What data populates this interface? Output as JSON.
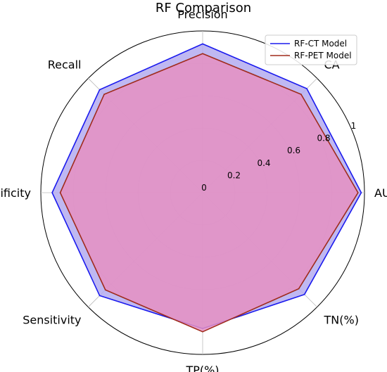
{
  "chart_data": {
    "type": "radar",
    "title": "RF Comparison",
    "categories": [
      "Precision",
      "CA",
      "AUC",
      "TN(%)",
      "TP(%)",
      "Sensitivity",
      "Specificity",
      "Recall"
    ],
    "rticks": [
      "0",
      "0.2",
      "0.4",
      "0.6",
      "0.8",
      "1"
    ],
    "rlim": [
      0,
      1
    ],
    "grid": true,
    "legend_position": "top-right",
    "series": [
      {
        "name": "RF-CT Model",
        "values": [
          0.92,
          0.91,
          0.98,
          0.89,
          0.84,
          0.9,
          0.93,
          0.9
        ],
        "line_color": "#1a1aee",
        "fill_color": "#b4acf0"
      },
      {
        "name": "RF-PET Model",
        "values": [
          0.86,
          0.86,
          0.96,
          0.84,
          0.86,
          0.85,
          0.88,
          0.86
        ],
        "line_color": "#a02b1b",
        "fill_color": "#e58fc2"
      }
    ]
  }
}
